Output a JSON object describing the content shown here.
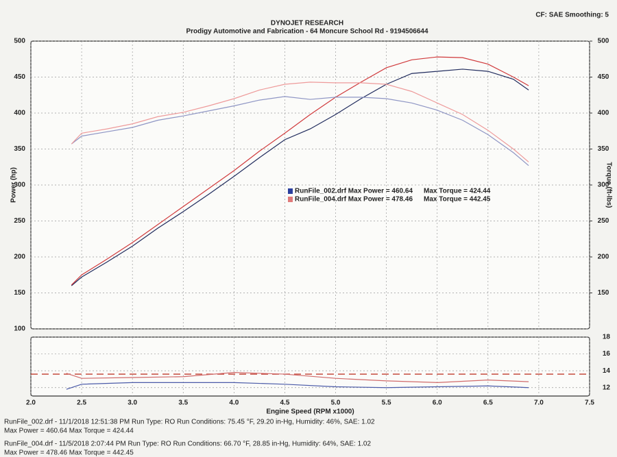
{
  "header": {
    "title": "DYNOJET RESEARCH",
    "subtitle": "Prodigy Automotive and Fabrication - 64 Moncure School Rd - 9194506644",
    "settings": "CF: SAE  Smoothing: 5"
  },
  "chart_data": [
    {
      "type": "line",
      "ylabel": "Power (hp)",
      "y2label": "Torque (ft-lbs)",
      "x": [
        2.4,
        2.5,
        2.75,
        3.0,
        3.25,
        3.5,
        3.75,
        4.0,
        4.25,
        4.5,
        4.75,
        5.0,
        5.25,
        5.5,
        5.75,
        6.0,
        6.25,
        6.5,
        6.75,
        6.9
      ],
      "xlim": [
        2.0,
        7.5
      ],
      "xticks": [
        {
          "value": 2,
          "label": "2.0"
        },
        2.5,
        {
          "value": 3,
          "label": "3.0"
        },
        3.5,
        {
          "value": 4,
          "label": "4.0"
        },
        4.5,
        {
          "value": 5,
          "label": "5.0"
        },
        5.5,
        {
          "value": 6,
          "label": "6.0"
        },
        6.5,
        {
          "value": 7,
          "label": "7.0"
        },
        7.5
      ],
      "ylim": [
        100,
        500
      ],
      "yticks": [
        100,
        150,
        200,
        250,
        300,
        350,
        400,
        450,
        500
      ],
      "y2lim": [
        100,
        500
      ],
      "y2ticks": [
        150,
        200,
        250,
        300,
        350,
        400,
        450,
        500
      ],
      "grid": true,
      "series": [
        {
          "color": "#1f2a5c",
          "values": [
            160,
            172,
            193,
            215,
            240,
            263,
            287,
            312,
            338,
            363,
            378,
            398,
            420,
            440,
            455,
            458,
            461,
            458,
            447,
            432
          ]
        },
        {
          "color": "#d0393b",
          "values": [
            161,
            175,
            197,
            220,
            245,
            270,
            295,
            320,
            347,
            372,
            398,
            422,
            443,
            463,
            474,
            478,
            477,
            468,
            450,
            438
          ]
        },
        {
          "color": "#8e95c4",
          "axis": "y2",
          "values": [
            357,
            368,
            374,
            380,
            390,
            396,
            403,
            410,
            418,
            423,
            419,
            422,
            422,
            420,
            414,
            404,
            390,
            370,
            345,
            327
          ]
        },
        {
          "color": "#ee9a9a",
          "axis": "y2",
          "values": [
            357,
            372,
            378,
            385,
            395,
            401,
            410,
            420,
            432,
            440,
            443,
            442,
            442,
            440,
            430,
            414,
            398,
            376,
            350,
            332
          ]
        }
      ],
      "legend": [
        {
          "color": "#2b3f9e",
          "label": "RunFile_002.drf Max Power = 460.64",
          "extra": "Max Torque = 424.44"
        },
        {
          "color": "#e07a7a",
          "label": "RunFile_004.drf Max Power = 478.46",
          "extra": "Max Torque = 442.45"
        }
      ]
    },
    {
      "type": "line",
      "xlabel": "Engine Speed (RPM x1000)",
      "x": [
        2.35,
        2.5,
        3.0,
        3.5,
        4.0,
        4.5,
        5.0,
        5.5,
        6.0,
        6.5,
        6.9
      ],
      "xlim": [
        2.0,
        7.5
      ],
      "xticks": [
        {
          "value": 2,
          "label": "2.0"
        },
        2.5,
        {
          "value": 3,
          "label": "3.0"
        },
        3.5,
        {
          "value": 4,
          "label": "4.0"
        },
        4.5,
        {
          "value": 5,
          "label": "5.0"
        },
        5.5,
        {
          "value": 6,
          "label": "6.0"
        },
        6.5,
        {
          "value": 7,
          "label": "7.0"
        },
        7.5
      ],
      "ylim": [
        11,
        18
      ],
      "yticks": [
        12,
        14,
        16,
        18
      ],
      "grid": true,
      "hline": {
        "value": 13.6,
        "color": "#c0392b"
      },
      "series": [
        {
          "color": "#4a5aa8",
          "values": [
            11.8,
            12.4,
            12.6,
            12.6,
            12.6,
            12.4,
            12.1,
            12.0,
            12.1,
            12.2,
            12.0
          ]
        },
        {
          "color": "#d06a6a",
          "values": [
            13.7,
            13.1,
            13.2,
            13.3,
            13.8,
            13.6,
            13.1,
            12.8,
            12.6,
            12.9,
            12.7
          ]
        }
      ]
    }
  ],
  "footer": [
    {
      "color": "#2b3f9e",
      "line1": "RunFile_002.drf - 11/1/2018 12:51:38 PM  Run Type: RO  Run Conditions: 75.45 °F, 29.20 in-Hg,  Humidity:  46%, SAE: 1.02",
      "line2": "Max Power = 460.64  Max Torque = 424.44"
    },
    {
      "color": "#c0392b",
      "line1": "RunFile_004.drf - 11/5/2018 2:07:44 PM  Run Type: RO  Run Conditions: 66.70 °F, 28.85 in-Hg,  Humidity: 64%, SAE: 1.02",
      "line2": "Max Power = 478.46  Max Torque = 442.45"
    }
  ]
}
